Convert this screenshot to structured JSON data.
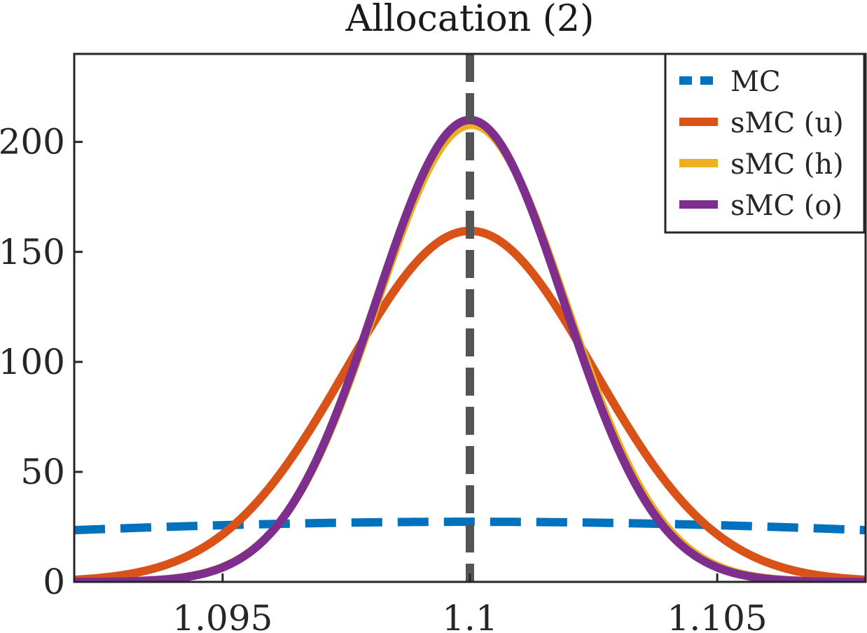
{
  "chart_data": {
    "type": "line",
    "title": "Allocation (2)",
    "xlabel": "",
    "ylabel": "",
    "xlim": [
      1.092,
      1.108
    ],
    "ylim": [
      0,
      240
    ],
    "x_ticks": [
      1.095,
      1.1,
      1.105
    ],
    "x_tick_labels": [
      "1.095",
      "1.1",
      "1.105"
    ],
    "y_ticks": [
      0,
      50,
      100,
      150,
      200
    ],
    "y_tick_labels": [
      "0",
      "50",
      "100",
      "150",
      "200"
    ],
    "legend_position": "top-right",
    "reference_line": {
      "x": 1.1,
      "color": "#555555",
      "style": "dashed"
    },
    "series": [
      {
        "name": "MC",
        "color": "#0072BD",
        "style": "dashed",
        "mean": 1.1,
        "sd": 0.0146,
        "scale": 1.0
      },
      {
        "name": "sMC (u)",
        "color": "#D95319",
        "style": "solid",
        "mean": 1.1,
        "sd": 0.0025,
        "scale": 1.0
      },
      {
        "name": "sMC (h)",
        "color": "#EDB120",
        "style": "solid",
        "mean": 1.10003,
        "sd": 0.00192,
        "scale": 1.0
      },
      {
        "name": "sMC (o)",
        "color": "#7E2F8E",
        "style": "solid",
        "mean": 1.1,
        "sd": 0.0019,
        "scale": 1.0
      }
    ]
  }
}
